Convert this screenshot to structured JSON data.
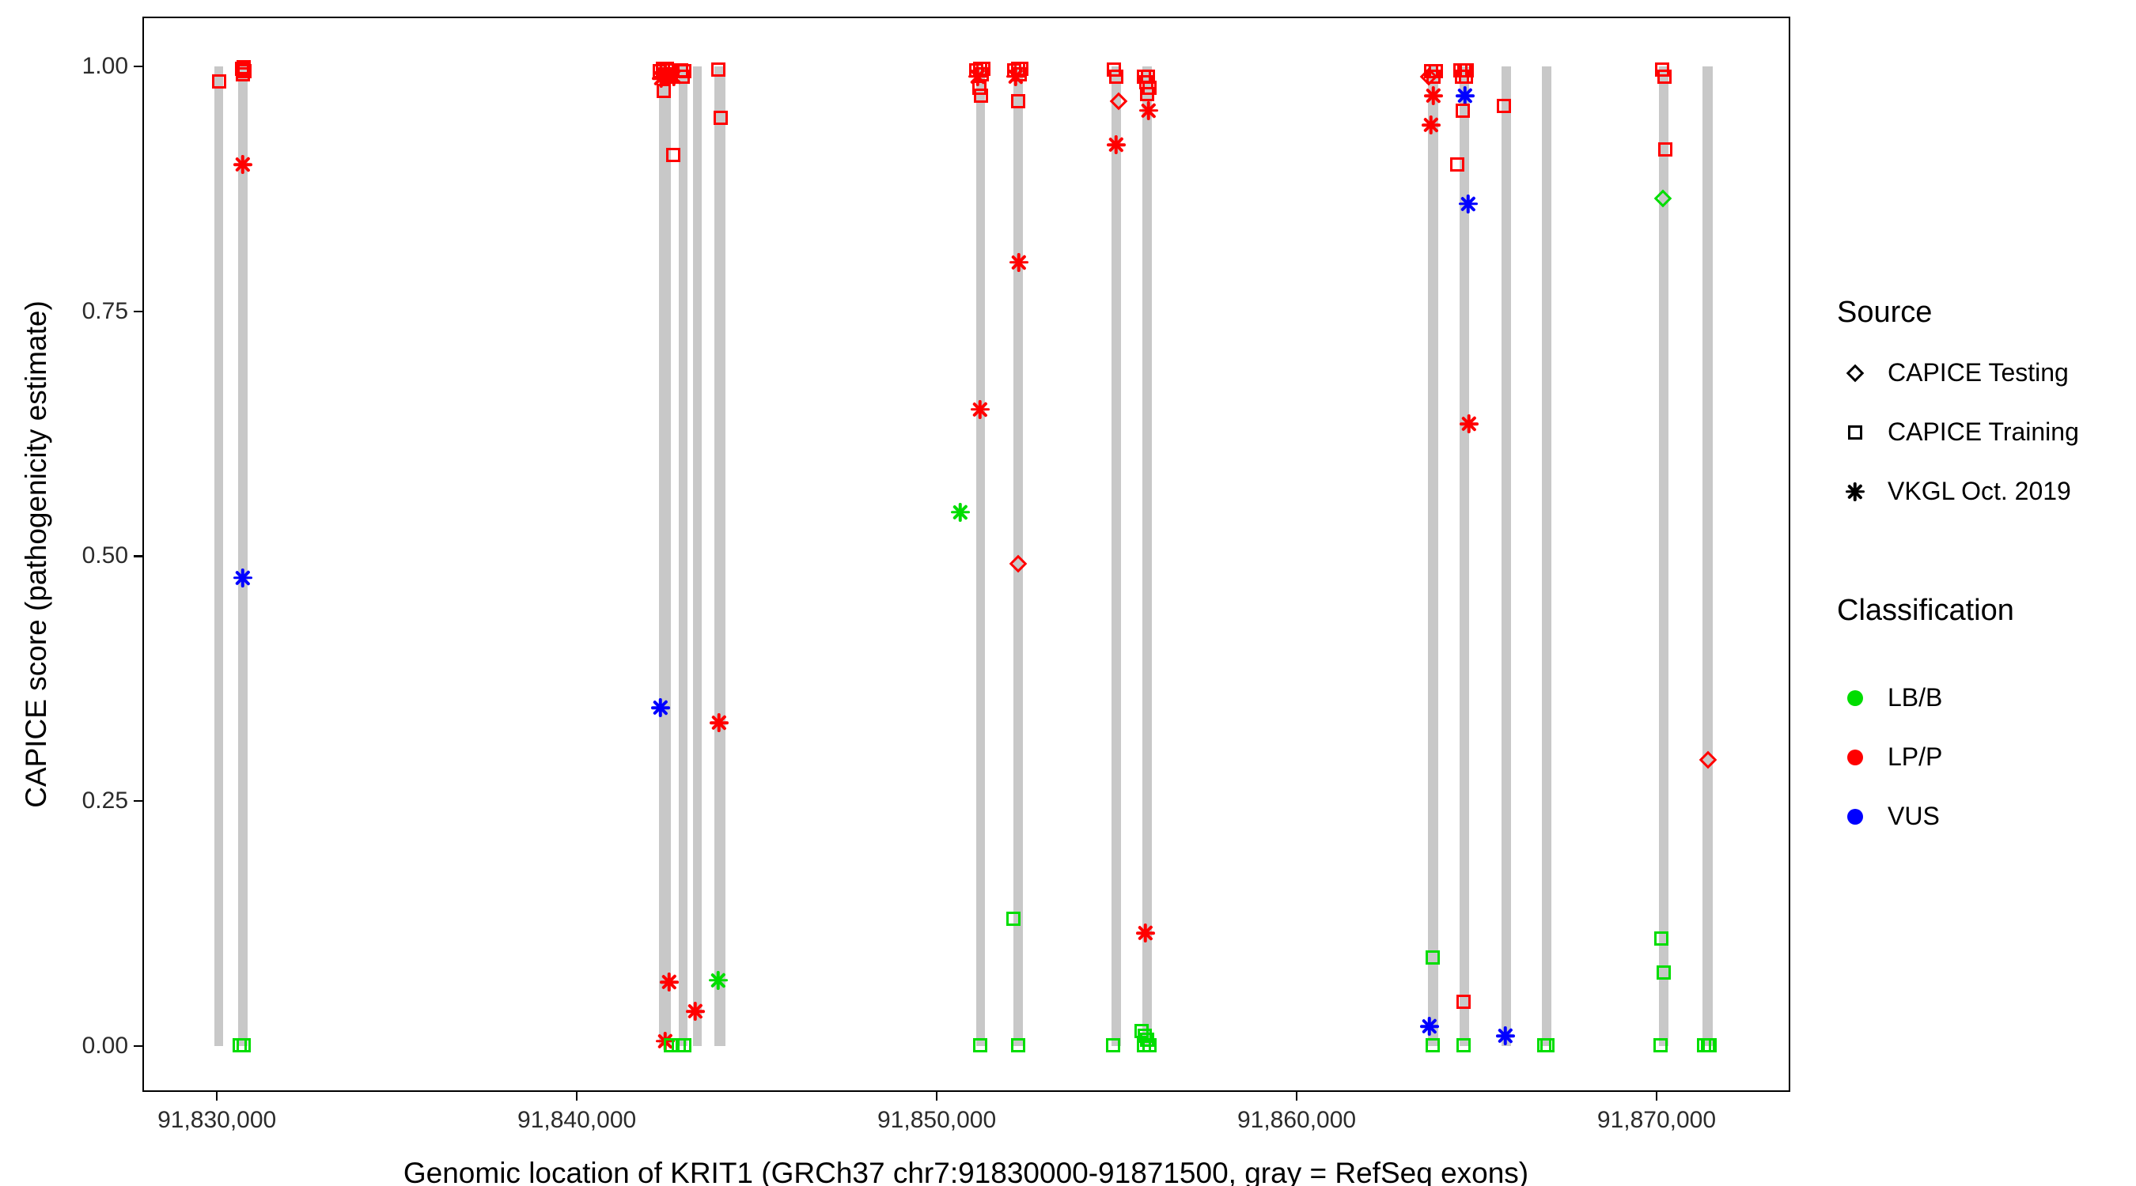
{
  "chart_data": {
    "type": "scatter",
    "title": "",
    "xlabel": "Genomic location of KRIT1 (GRCh37 chr7:91830000-91871500, gray = RefSeq exons)",
    "ylabel": "CAPICE score (pathogenicity estimate)",
    "xlim": [
      91827930,
      91873715
    ],
    "ylim": [
      -0.047,
      1.051
    ],
    "grid": "off",
    "x_ticks": [
      {
        "value": 91830000,
        "label": "91,830,000"
      },
      {
        "value": 91840000,
        "label": "91,840,000"
      },
      {
        "value": 91850000,
        "label": "91,850,000"
      },
      {
        "value": 91860000,
        "label": "91,860,000"
      },
      {
        "value": 91870000,
        "label": "91,870,000"
      }
    ],
    "y_ticks": [
      {
        "value": 0.0,
        "label": "0.00"
      },
      {
        "value": 0.25,
        "label": "0.25"
      },
      {
        "value": 0.5,
        "label": "0.50"
      },
      {
        "value": 0.75,
        "label": "0.75"
      },
      {
        "value": 1.0,
        "label": "1.00"
      }
    ],
    "colors": {
      "LB/B": "#00dd00",
      "LP/P": "#ff0000",
      "VUS": "#0000ff",
      "exon": "#c8c8c8"
    },
    "exons": [
      {
        "start": 91829930,
        "end": 91830180
      },
      {
        "start": 91830600,
        "end": 91830860
      },
      {
        "start": 91842280,
        "end": 91842620
      },
      {
        "start": 91842830,
        "end": 91843080
      },
      {
        "start": 91843230,
        "end": 91843480
      },
      {
        "start": 91843830,
        "end": 91844130
      },
      {
        "start": 91851090,
        "end": 91851350
      },
      {
        "start": 91852130,
        "end": 91852400
      },
      {
        "start": 91854860,
        "end": 91855120
      },
      {
        "start": 91855720,
        "end": 91855980
      },
      {
        "start": 91863650,
        "end": 91863940
      },
      {
        "start": 91864520,
        "end": 91864800
      },
      {
        "start": 91865690,
        "end": 91865950
      },
      {
        "start": 91866820,
        "end": 91867080
      },
      {
        "start": 91870060,
        "end": 91870330
      },
      {
        "start": 91871280,
        "end": 91871560
      }
    ],
    "points": [
      {
        "x": 91830060,
        "y": 0.985,
        "shape": "square",
        "class": "LP/P"
      },
      {
        "x": 91830690,
        "y": 0.998,
        "shape": "square",
        "class": "LP/P"
      },
      {
        "x": 91830720,
        "y": 0.992,
        "shape": "square",
        "class": "LP/P"
      },
      {
        "x": 91830748,
        "y": 0.999,
        "shape": "square",
        "class": "LP/P"
      },
      {
        "x": 91830775,
        "y": 0.995,
        "shape": "square",
        "class": "LP/P"
      },
      {
        "x": 91830730,
        "y": 0.9,
        "shape": "asterisk",
        "class": "LP/P"
      },
      {
        "x": 91830715,
        "y": 0.478,
        "shape": "asterisk",
        "class": "VUS"
      },
      {
        "x": 91830640,
        "y": 0.001,
        "shape": "square",
        "class": "LB/B"
      },
      {
        "x": 91830748,
        "y": 0.001,
        "shape": "square",
        "class": "LB/B"
      },
      {
        "x": 91842300,
        "y": 0.995,
        "shape": "square",
        "class": "LP/P"
      },
      {
        "x": 91842350,
        "y": 0.988,
        "shape": "asterisk",
        "class": "LP/P"
      },
      {
        "x": 91842400,
        "y": 0.998,
        "shape": "square",
        "class": "LP/P"
      },
      {
        "x": 91842450,
        "y": 0.992,
        "shape": "square",
        "class": "LP/P"
      },
      {
        "x": 91842505,
        "y": 0.998,
        "shape": "square",
        "class": "LP/P"
      },
      {
        "x": 91842555,
        "y": 0.99,
        "shape": "square",
        "class": "LP/P"
      },
      {
        "x": 91842620,
        "y": 0.996,
        "shape": "square",
        "class": "LP/P"
      },
      {
        "x": 91842700,
        "y": 0.99,
        "shape": "asterisk",
        "class": "LP/P"
      },
      {
        "x": 91842420,
        "y": 0.975,
        "shape": "square",
        "class": "LP/P"
      },
      {
        "x": 91842680,
        "y": 0.91,
        "shape": "square",
        "class": "LP/P"
      },
      {
        "x": 91842890,
        "y": 0.996,
        "shape": "square",
        "class": "LP/P"
      },
      {
        "x": 91842940,
        "y": 0.99,
        "shape": "square",
        "class": "LP/P"
      },
      {
        "x": 91842995,
        "y": 0.995,
        "shape": "square",
        "class": "LP/P"
      },
      {
        "x": 91842330,
        "y": 0.345,
        "shape": "asterisk",
        "class": "VUS"
      },
      {
        "x": 91842560,
        "y": 0.065,
        "shape": "asterisk",
        "class": "LP/P"
      },
      {
        "x": 91843300,
        "y": 0.035,
        "shape": "asterisk",
        "class": "LP/P"
      },
      {
        "x": 91842450,
        "y": 0.005,
        "shape": "asterisk",
        "class": "LP/P"
      },
      {
        "x": 91842620,
        "y": 0.001,
        "shape": "square",
        "class": "LB/B"
      },
      {
        "x": 91842830,
        "y": 0.001,
        "shape": "square",
        "class": "LB/B"
      },
      {
        "x": 91842980,
        "y": 0.001,
        "shape": "square",
        "class": "LB/B"
      },
      {
        "x": 91843930,
        "y": 0.997,
        "shape": "square",
        "class": "LP/P"
      },
      {
        "x": 91843995,
        "y": 0.948,
        "shape": "square",
        "class": "LP/P"
      },
      {
        "x": 91843960,
        "y": 0.33,
        "shape": "asterisk",
        "class": "LP/P"
      },
      {
        "x": 91843940,
        "y": 0.067,
        "shape": "asterisk",
        "class": "LB/B"
      },
      {
        "x": 91851100,
        "y": 0.996,
        "shape": "square",
        "class": "LP/P"
      },
      {
        "x": 91851150,
        "y": 0.99,
        "shape": "asterisk",
        "class": "LP/P"
      },
      {
        "x": 91851200,
        "y": 0.998,
        "shape": "square",
        "class": "LP/P"
      },
      {
        "x": 91851250,
        "y": 0.992,
        "shape": "square",
        "class": "LP/P"
      },
      {
        "x": 91851305,
        "y": 0.998,
        "shape": "square",
        "class": "LP/P"
      },
      {
        "x": 91851180,
        "y": 0.978,
        "shape": "square",
        "class": "LP/P"
      },
      {
        "x": 91851240,
        "y": 0.97,
        "shape": "square",
        "class": "LP/P"
      },
      {
        "x": 91851210,
        "y": 0.65,
        "shape": "asterisk",
        "class": "LP/P"
      },
      {
        "x": 91850660,
        "y": 0.545,
        "shape": "asterisk",
        "class": "LB/B"
      },
      {
        "x": 91851200,
        "y": 0.001,
        "shape": "square",
        "class": "LB/B"
      },
      {
        "x": 91852150,
        "y": 0.996,
        "shape": "square",
        "class": "LP/P"
      },
      {
        "x": 91852200,
        "y": 0.99,
        "shape": "asterisk",
        "class": "LP/P"
      },
      {
        "x": 91852255,
        "y": 0.998,
        "shape": "square",
        "class": "LP/P"
      },
      {
        "x": 91852305,
        "y": 0.992,
        "shape": "square",
        "class": "LP/P"
      },
      {
        "x": 91852355,
        "y": 0.998,
        "shape": "square",
        "class": "LP/P"
      },
      {
        "x": 91852270,
        "y": 0.965,
        "shape": "square",
        "class": "LP/P"
      },
      {
        "x": 91852290,
        "y": 0.8,
        "shape": "asterisk",
        "class": "LP/P"
      },
      {
        "x": 91852260,
        "y": 0.492,
        "shape": "diamond",
        "class": "LP/P"
      },
      {
        "x": 91852130,
        "y": 0.13,
        "shape": "square",
        "class": "LB/B"
      },
      {
        "x": 91852260,
        "y": 0.001,
        "shape": "square",
        "class": "LB/B"
      },
      {
        "x": 91854930,
        "y": 0.997,
        "shape": "square",
        "class": "LP/P"
      },
      {
        "x": 91854990,
        "y": 0.99,
        "shape": "square",
        "class": "LP/P"
      },
      {
        "x": 91855060,
        "y": 0.965,
        "shape": "diamond",
        "class": "LP/P"
      },
      {
        "x": 91854990,
        "y": 0.92,
        "shape": "asterisk",
        "class": "LP/P"
      },
      {
        "x": 91854890,
        "y": 0.001,
        "shape": "square",
        "class": "LB/B"
      },
      {
        "x": 91855760,
        "y": 0.99,
        "shape": "square",
        "class": "LP/P"
      },
      {
        "x": 91855815,
        "y": 0.984,
        "shape": "square",
        "class": "LP/P"
      },
      {
        "x": 91855865,
        "y": 0.99,
        "shape": "square",
        "class": "LP/P"
      },
      {
        "x": 91855915,
        "y": 0.978,
        "shape": "square",
        "class": "LP/P"
      },
      {
        "x": 91855835,
        "y": 0.972,
        "shape": "square",
        "class": "LP/P"
      },
      {
        "x": 91855885,
        "y": 0.955,
        "shape": "asterisk",
        "class": "LP/P"
      },
      {
        "x": 91855810,
        "y": 0.115,
        "shape": "asterisk",
        "class": "LP/P"
      },
      {
        "x": 91855700,
        "y": 0.015,
        "shape": "square",
        "class": "LB/B"
      },
      {
        "x": 91855785,
        "y": 0.01,
        "shape": "square",
        "class": "LB/B"
      },
      {
        "x": 91855850,
        "y": 0.006,
        "shape": "square",
        "class": "LB/B"
      },
      {
        "x": 91855760,
        "y": 0.001,
        "shape": "square",
        "class": "LB/B"
      },
      {
        "x": 91855905,
        "y": 0.001,
        "shape": "square",
        "class": "LB/B"
      },
      {
        "x": 91863680,
        "y": 0.99,
        "shape": "diamond",
        "class": "LP/P"
      },
      {
        "x": 91863740,
        "y": 0.995,
        "shape": "square",
        "class": "LP/P"
      },
      {
        "x": 91863800,
        "y": 0.99,
        "shape": "square",
        "class": "LP/P"
      },
      {
        "x": 91863860,
        "y": 0.995,
        "shape": "square",
        "class": "LP/P"
      },
      {
        "x": 91863800,
        "y": 0.97,
        "shape": "asterisk",
        "class": "LP/P"
      },
      {
        "x": 91863730,
        "y": 0.94,
        "shape": "asterisk",
        "class": "LP/P"
      },
      {
        "x": 91863790,
        "y": 0.09,
        "shape": "square",
        "class": "LB/B"
      },
      {
        "x": 91863690,
        "y": 0.02,
        "shape": "asterisk",
        "class": "VUS"
      },
      {
        "x": 91863790,
        "y": 0.001,
        "shape": "square",
        "class": "LB/B"
      },
      {
        "x": 91864550,
        "y": 0.996,
        "shape": "square",
        "class": "LP/P"
      },
      {
        "x": 91864600,
        "y": 0.99,
        "shape": "square",
        "class": "LP/P"
      },
      {
        "x": 91864655,
        "y": 0.996,
        "shape": "square",
        "class": "LP/P"
      },
      {
        "x": 91864705,
        "y": 0.99,
        "shape": "square",
        "class": "LP/P"
      },
      {
        "x": 91864730,
        "y": 0.996,
        "shape": "square",
        "class": "LP/P"
      },
      {
        "x": 91864680,
        "y": 0.97,
        "shape": "asterisk",
        "class": "VUS"
      },
      {
        "x": 91864620,
        "y": 0.955,
        "shape": "square",
        "class": "LP/P"
      },
      {
        "x": 91864460,
        "y": 0.9,
        "shape": "square",
        "class": "LP/P"
      },
      {
        "x": 91864760,
        "y": 0.86,
        "shape": "asterisk",
        "class": "VUS"
      },
      {
        "x": 91864800,
        "y": 0.635,
        "shape": "asterisk",
        "class": "LP/P"
      },
      {
        "x": 91864640,
        "y": 0.045,
        "shape": "square",
        "class": "LP/P"
      },
      {
        "x": 91864640,
        "y": 0.001,
        "shape": "square",
        "class": "LB/B"
      },
      {
        "x": 91865760,
        "y": 0.96,
        "shape": "square",
        "class": "LP/P"
      },
      {
        "x": 91865800,
        "y": 0.01,
        "shape": "asterisk",
        "class": "VUS"
      },
      {
        "x": 91866880,
        "y": 0.001,
        "shape": "square",
        "class": "LB/B"
      },
      {
        "x": 91866960,
        "y": 0.001,
        "shape": "square",
        "class": "LB/B"
      },
      {
        "x": 91870150,
        "y": 0.997,
        "shape": "square",
        "class": "LP/P"
      },
      {
        "x": 91870225,
        "y": 0.99,
        "shape": "square",
        "class": "LP/P"
      },
      {
        "x": 91870250,
        "y": 0.915,
        "shape": "square",
        "class": "LP/P"
      },
      {
        "x": 91870170,
        "y": 0.865,
        "shape": "diamond",
        "class": "LB/B"
      },
      {
        "x": 91870140,
        "y": 0.11,
        "shape": "square",
        "class": "LB/B"
      },
      {
        "x": 91870190,
        "y": 0.075,
        "shape": "square",
        "class": "LB/B"
      },
      {
        "x": 91870100,
        "y": 0.001,
        "shape": "square",
        "class": "LB/B"
      },
      {
        "x": 91871420,
        "y": 0.292,
        "shape": "diamond",
        "class": "LP/P"
      },
      {
        "x": 91871330,
        "y": 0.001,
        "shape": "square",
        "class": "LB/B"
      },
      {
        "x": 91871430,
        "y": 0.001,
        "shape": "square",
        "class": "LB/B"
      },
      {
        "x": 91871480,
        "y": 0.001,
        "shape": "square",
        "class": "LB/B"
      }
    ],
    "legend": {
      "position": "right",
      "source": {
        "title": "Source",
        "items": [
          {
            "label": "CAPICE Testing",
            "shape": "diamond"
          },
          {
            "label": "CAPICE Training",
            "shape": "square"
          },
          {
            "label": "VKGL Oct. 2019",
            "shape": "asterisk"
          }
        ]
      },
      "classification": {
        "title": "Classification",
        "items": [
          {
            "label": "LB/B",
            "shape": "circle",
            "color": "#00dd00"
          },
          {
            "label": "LP/P",
            "shape": "circle",
            "color": "#ff0000"
          },
          {
            "label": "VUS",
            "shape": "circle",
            "color": "#0000ff"
          }
        ]
      }
    }
  }
}
